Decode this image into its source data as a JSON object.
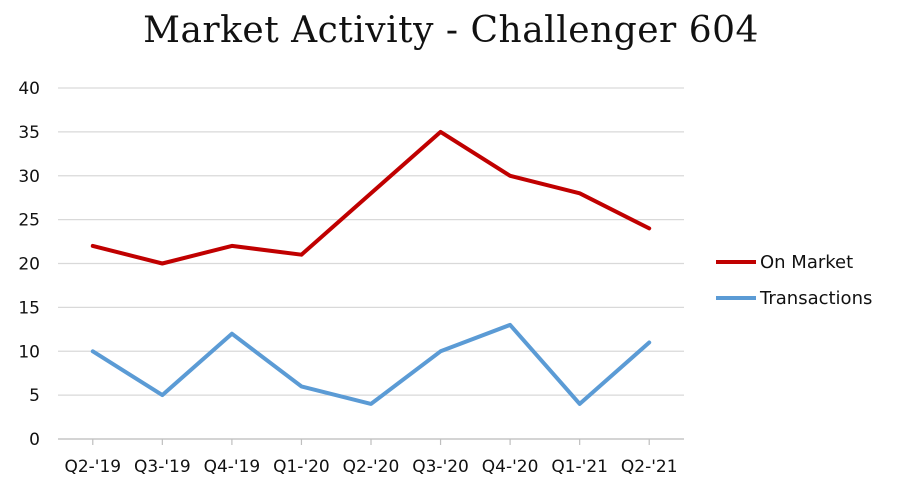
{
  "chart_data": {
    "type": "line",
    "title": "Market Activity - Challenger 604",
    "categories": [
      "Q2-'19",
      "Q3-'19",
      "Q4-'19",
      "Q1-'20",
      "Q2-'20",
      "Q3-'20",
      "Q4-'20",
      "Q1-'21",
      "Q2-'21"
    ],
    "ylim": [
      0,
      40
    ],
    "yticks": [
      0,
      5,
      10,
      15,
      20,
      25,
      30,
      35,
      40
    ],
    "grid": true,
    "legend_position": "right",
    "series": [
      {
        "name": "On Market",
        "color": "#c00000",
        "values": [
          22,
          20,
          22,
          21,
          28,
          35,
          30,
          28,
          24
        ]
      },
      {
        "name": "Transactions",
        "color": "#5b9bd5",
        "values": [
          10,
          5,
          12,
          6,
          4,
          10,
          13,
          4,
          11
        ]
      }
    ]
  }
}
